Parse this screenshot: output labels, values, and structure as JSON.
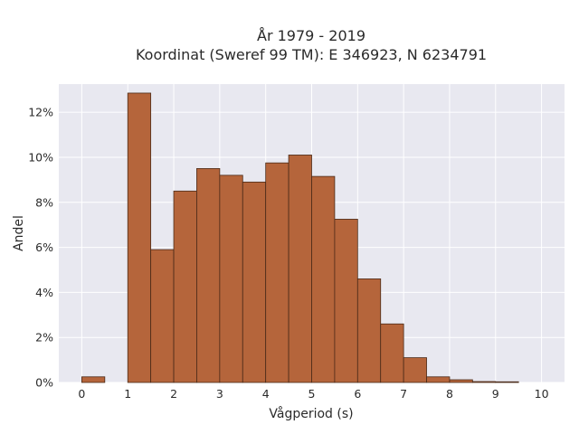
{
  "chart_data": {
    "type": "bar",
    "title": "År 1979 - 2019",
    "subtitle": "Koordinat (Sweref 99 TM): E 346923, N 6234791",
    "xlabel": "Vågperiod (s)",
    "ylabel": "Andel",
    "bin_width": 0.5,
    "bins_start": [
      0,
      0.5,
      1,
      1.5,
      2,
      2.5,
      3,
      3.5,
      4,
      4.5,
      5,
      5.5,
      6,
      6.5,
      7,
      7.5,
      8,
      8.5,
      9,
      9.5
    ],
    "values": [
      0.25,
      0,
      12.85,
      5.9,
      8.5,
      9.5,
      9.2,
      8.9,
      9.75,
      10.1,
      9.15,
      7.25,
      4.6,
      2.6,
      1.1,
      0.25,
      0.12,
      0.04,
      0.03,
      0
    ],
    "xlim": [
      -0.5,
      10.5
    ],
    "ylim": [
      0,
      13.25
    ],
    "x_ticks": [
      0,
      1,
      2,
      3,
      4,
      5,
      6,
      7,
      8,
      9,
      10
    ],
    "x_tick_labels": [
      "0",
      "1",
      "2",
      "3",
      "4",
      "5",
      "6",
      "7",
      "8",
      "9",
      "10"
    ],
    "y_ticks": [
      0,
      2,
      4,
      6,
      8,
      10,
      12
    ],
    "y_tick_labels": [
      "0%",
      "2%",
      "4%",
      "6%",
      "8%",
      "10%",
      "12%"
    ],
    "grid": true,
    "colors": {
      "bar_fill": "#b5653b",
      "bar_edge": "#4a2a18",
      "plot_bg": "#e8e8f0",
      "grid": "#ffffff"
    }
  }
}
